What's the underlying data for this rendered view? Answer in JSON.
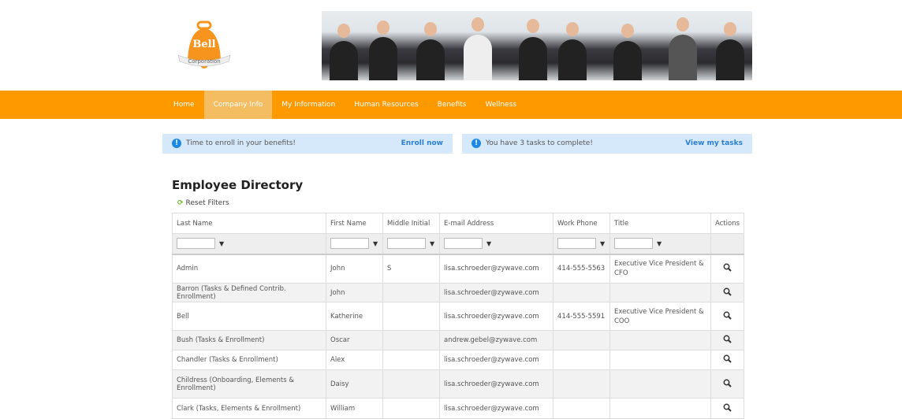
{
  "logo": {
    "text": "Bell",
    "subtext": "Corporation",
    "color": "#f7941d"
  },
  "nav": {
    "items": [
      "Home",
      "Company Info",
      "My Information",
      "Human Resources",
      "Benefits",
      "Wellness"
    ],
    "active": "Company Info",
    "color": "#ff9900"
  },
  "alerts": [
    {
      "message": "Time to enroll in your benefits!",
      "link": "Enroll now",
      "icon": "info-icon"
    },
    {
      "message": "You have 3 tasks to complete!",
      "link": "View my tasks",
      "icon": "info-icon"
    }
  ],
  "directory": {
    "title": "Employee Directory",
    "reset_label": "Reset Filters",
    "columns": [
      "Last Name",
      "First Name",
      "Middle Initial",
      "E-mail Address",
      "Work Phone",
      "Title",
      "Actions"
    ],
    "rows": [
      [
        "Admin",
        "John",
        "S",
        "lisa.schroeder@zywave.com",
        "414-555-5563",
        "Executive Vice President & CFO"
      ],
      [
        "Barron (Tasks & Defined Contrib. Enrollment)",
        "John",
        "",
        "lisa.schroeder@zywave.com",
        "",
        ""
      ],
      [
        "Bell",
        "Katherine",
        "",
        "lisa.schroeder@zywave.com",
        "414-555-5591",
        "Executive Vice President & COO"
      ],
      [
        "Bush (Tasks & Enrollment)",
        "Oscar",
        "",
        "andrew.gebel@zywave.com",
        "",
        ""
      ],
      [
        "Chandler (Tasks & Enrollment)",
        "Alex",
        "",
        "lisa.schroeder@zywave.com",
        "",
        ""
      ],
      [
        "Childress (Onboarding, Elements & Enrollment)",
        "Daisy",
        "",
        "lisa.schroeder@zywave.com",
        "",
        ""
      ],
      [
        "Clark (Tasks, Elements & Enrollment)",
        "William",
        "",
        "lisa.schroeder@zywave.com",
        "",
        ""
      ]
    ]
  }
}
